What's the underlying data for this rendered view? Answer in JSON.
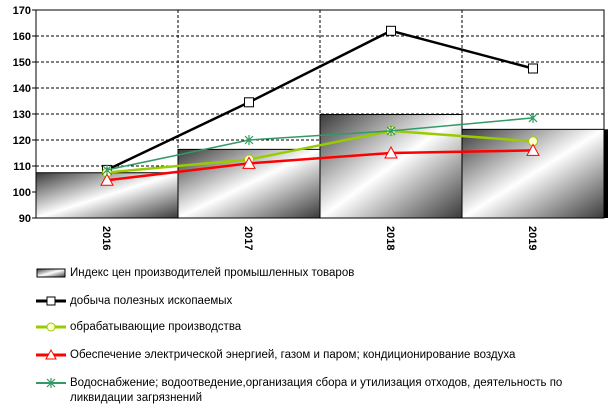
{
  "chart_data": {
    "type": "bar",
    "categories": [
      "2016",
      "2017",
      "2018",
      "2019"
    ],
    "ylim": [
      90,
      170
    ],
    "yticks": [
      90,
      100,
      110,
      120,
      130,
      140,
      150,
      160,
      170
    ],
    "grid": true,
    "legend_position": "bottom",
    "bar_series": {
      "name": "Индекс цен производителей промышленных товаров",
      "values": [
        107.4,
        116.4,
        129.8,
        124.1
      ]
    },
    "series": [
      {
        "name": "добыча полезных ископаемых",
        "values": [
          108.5,
          134.5,
          162.0,
          147.5
        ],
        "color": "#000000",
        "marker": "square"
      },
      {
        "name": "обрабатывающие производства",
        "values": [
          107.5,
          112.5,
          123.5,
          119.5
        ],
        "color": "#99cc00",
        "marker": "circle"
      },
      {
        "name": "Обеспечение электрической энергией, газом и паром; кондиционирование воздуха",
        "values": [
          104.5,
          111.0,
          115.0,
          116.0
        ],
        "color": "#ff0000",
        "marker": "triangle"
      },
      {
        "name": "Водоснабжение; водоотведение,организация сбора и утилизация отходов, деятельность по ликвидации загрязнений",
        "values": [
          108.5,
          120.0,
          123.5,
          128.5
        ],
        "color": "#339966",
        "marker": "star"
      }
    ]
  }
}
